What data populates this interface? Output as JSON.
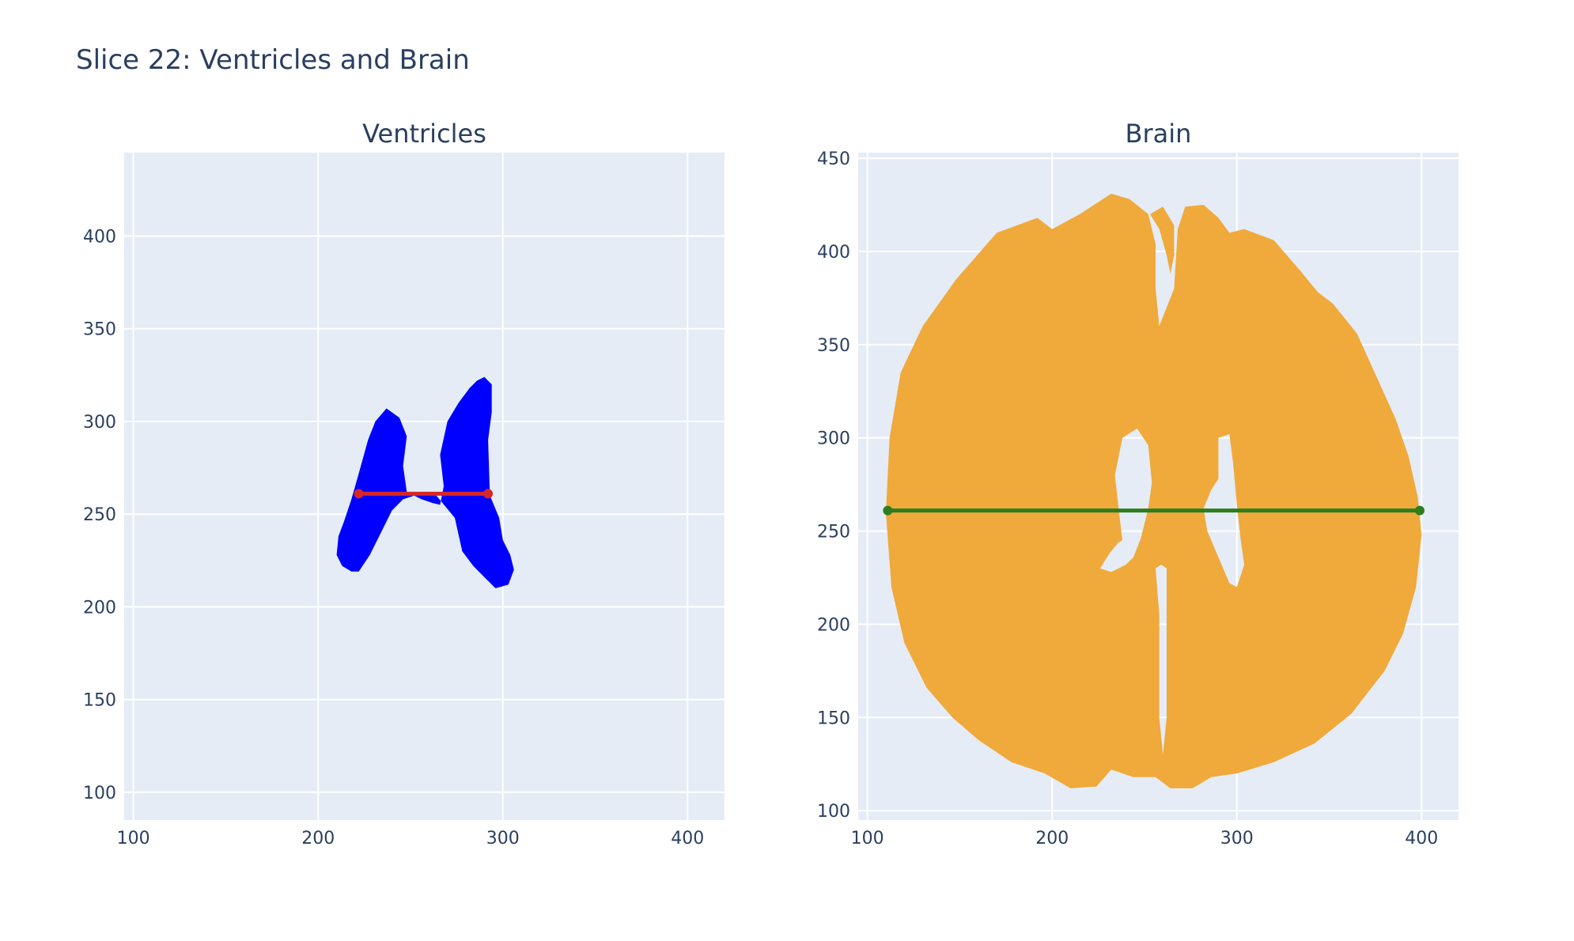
{
  "figure": {
    "title": "Slice 22: Ventricles and Brain"
  },
  "chart_data": [
    {
      "type": "scatter",
      "title": "Ventricles",
      "xlabel": "",
      "ylabel": "",
      "xlim": [
        95,
        420
      ],
      "ylim": [
        85,
        445
      ],
      "xticks": [
        100,
        200,
        300,
        400
      ],
      "yticks": [
        100,
        150,
        200,
        250,
        300,
        350,
        400
      ],
      "grid": true,
      "mask_color": "#0000ff",
      "regions": [
        {
          "outline": [
            [
              210,
              228
            ],
            [
              213,
              222
            ],
            [
              218,
              219
            ],
            [
              222,
              219
            ],
            [
              228,
              228
            ],
            [
              234,
              240
            ],
            [
              240,
              252
            ],
            [
              246,
              258
            ],
            [
              252,
              260
            ],
            [
              256,
              258
            ],
            [
              262,
              256
            ],
            [
              266,
              255
            ],
            [
              268,
              265
            ],
            [
              266,
              282
            ],
            [
              270,
              300
            ],
            [
              276,
              310
            ],
            [
              282,
              318
            ],
            [
              286,
              322
            ],
            [
              290,
              324
            ],
            [
              294,
              320
            ],
            [
              294,
              305
            ],
            [
              292,
              290
            ],
            [
              293,
              260
            ],
            [
              298,
              248
            ],
            [
              300,
              236
            ],
            [
              304,
              228
            ],
            [
              306,
              220
            ],
            [
              303,
              212
            ],
            [
              296,
              210
            ],
            [
              290,
              216
            ],
            [
              284,
              222
            ],
            [
              278,
              230
            ],
            [
              274,
              248
            ],
            [
              264,
              260
            ],
            [
              252,
              261
            ],
            [
              248,
              262
            ],
            [
              246,
              276
            ],
            [
              248,
              292
            ],
            [
              244,
              302
            ],
            [
              237,
              307
            ],
            [
              231,
              300
            ],
            [
              227,
              290
            ],
            [
              222,
              272
            ],
            [
              218,
              258
            ],
            [
              214,
              246
            ],
            [
              211,
              238
            ],
            [
              210,
              228
            ]
          ]
        }
      ],
      "line": {
        "color": "#d62728",
        "points": [
          [
            222,
            261
          ],
          [
            292,
            261
          ]
        ]
      }
    },
    {
      "type": "scatter",
      "title": "Brain",
      "xlabel": "",
      "ylabel": "",
      "xlim": [
        95,
        420
      ],
      "ylim": [
        95,
        453
      ],
      "xticks": [
        100,
        200,
        300,
        400
      ],
      "yticks": [
        100,
        150,
        200,
        250,
        300,
        350,
        400,
        450
      ],
      "grid": true,
      "mask_color": "#f0a93b",
      "regions": [
        {
          "outline": [
            [
              110,
              260
            ],
            [
              112,
              300
            ],
            [
              118,
              335
            ],
            [
              130,
              360
            ],
            [
              148,
              385
            ],
            [
              170,
              410
            ],
            [
              192,
              418
            ],
            [
              200,
              412
            ],
            [
              215,
              420
            ],
            [
              232,
              431
            ],
            [
              242,
              428
            ],
            [
              252,
              420
            ],
            [
              256,
              404
            ],
            [
              256,
              380
            ],
            [
              258,
              360
            ],
            [
              266,
              380
            ],
            [
              268,
              412
            ],
            [
              272,
              424
            ],
            [
              282,
              425
            ],
            [
              290,
              418
            ],
            [
              296,
              410
            ],
            [
              304,
              412
            ],
            [
              320,
              406
            ],
            [
              334,
              390
            ],
            [
              344,
              378
            ],
            [
              352,
              372
            ],
            [
              365,
              356
            ],
            [
              376,
              332
            ],
            [
              386,
              310
            ],
            [
              393,
              290
            ],
            [
              398,
              268
            ],
            [
              400,
              248
            ],
            [
              397,
              220
            ],
            [
              390,
              195
            ],
            [
              380,
              175
            ],
            [
              362,
              152
            ],
            [
              342,
              136
            ],
            [
              320,
              126
            ],
            [
              300,
              120
            ],
            [
              286,
              118
            ],
            [
              276,
              112
            ],
            [
              264,
              112
            ],
            [
              256,
              118
            ],
            [
              244,
              118
            ],
            [
              232,
              122
            ],
            [
              224,
              113
            ],
            [
              210,
              112
            ],
            [
              196,
              120
            ],
            [
              178,
              126
            ],
            [
              160,
              138
            ],
            [
              146,
              150
            ],
            [
              132,
              166
            ],
            [
              120,
              190
            ],
            [
              113,
              220
            ],
            [
              110,
              260
            ]
          ]
        }
      ],
      "holes": [
        {
          "outline": [
            [
              238,
              245
            ],
            [
              236,
              262
            ],
            [
              234,
              280
            ],
            [
              238,
              300
            ],
            [
              246,
              305
            ],
            [
              252,
              296
            ],
            [
              254,
              276
            ],
            [
              252,
              262
            ],
            [
              248,
              246
            ],
            [
              244,
              236
            ],
            [
              240,
              232
            ],
            [
              232,
              228
            ],
            [
              226,
              230
            ],
            [
              231,
              238
            ],
            [
              236,
              244
            ],
            [
              238,
              245
            ]
          ]
        },
        {
          "outline": [
            [
              290,
              278
            ],
            [
              290,
              300
            ],
            [
              296,
              302
            ],
            [
              298,
              286
            ],
            [
              300,
              264
            ],
            [
              302,
              246
            ],
            [
              304,
              232
            ],
            [
              300,
              220
            ],
            [
              296,
              222
            ],
            [
              290,
              236
            ],
            [
              284,
              250
            ],
            [
              282,
              262
            ],
            [
              286,
              272
            ],
            [
              290,
              278
            ]
          ]
        },
        {
          "outline": [
            [
              256,
              230
            ],
            [
              258,
              205
            ],
            [
              258,
              175
            ],
            [
              258,
              150
            ],
            [
              260,
              130
            ],
            [
              262,
              150
            ],
            [
              262,
              180
            ],
            [
              262,
              205
            ],
            [
              262,
              230
            ],
            [
              259,
              232
            ],
            [
              256,
              230
            ]
          ]
        },
        {
          "outline": [
            [
              253,
              420
            ],
            [
              258,
              412
            ],
            [
              262,
              398
            ],
            [
              264,
              388
            ],
            [
              266,
              398
            ],
            [
              266,
              414
            ],
            [
              260,
              424
            ],
            [
              253,
              420
            ]
          ]
        }
      ],
      "line": {
        "color": "#2e7d1f",
        "points": [
          [
            111,
            261
          ],
          [
            399,
            261
          ]
        ]
      }
    }
  ]
}
